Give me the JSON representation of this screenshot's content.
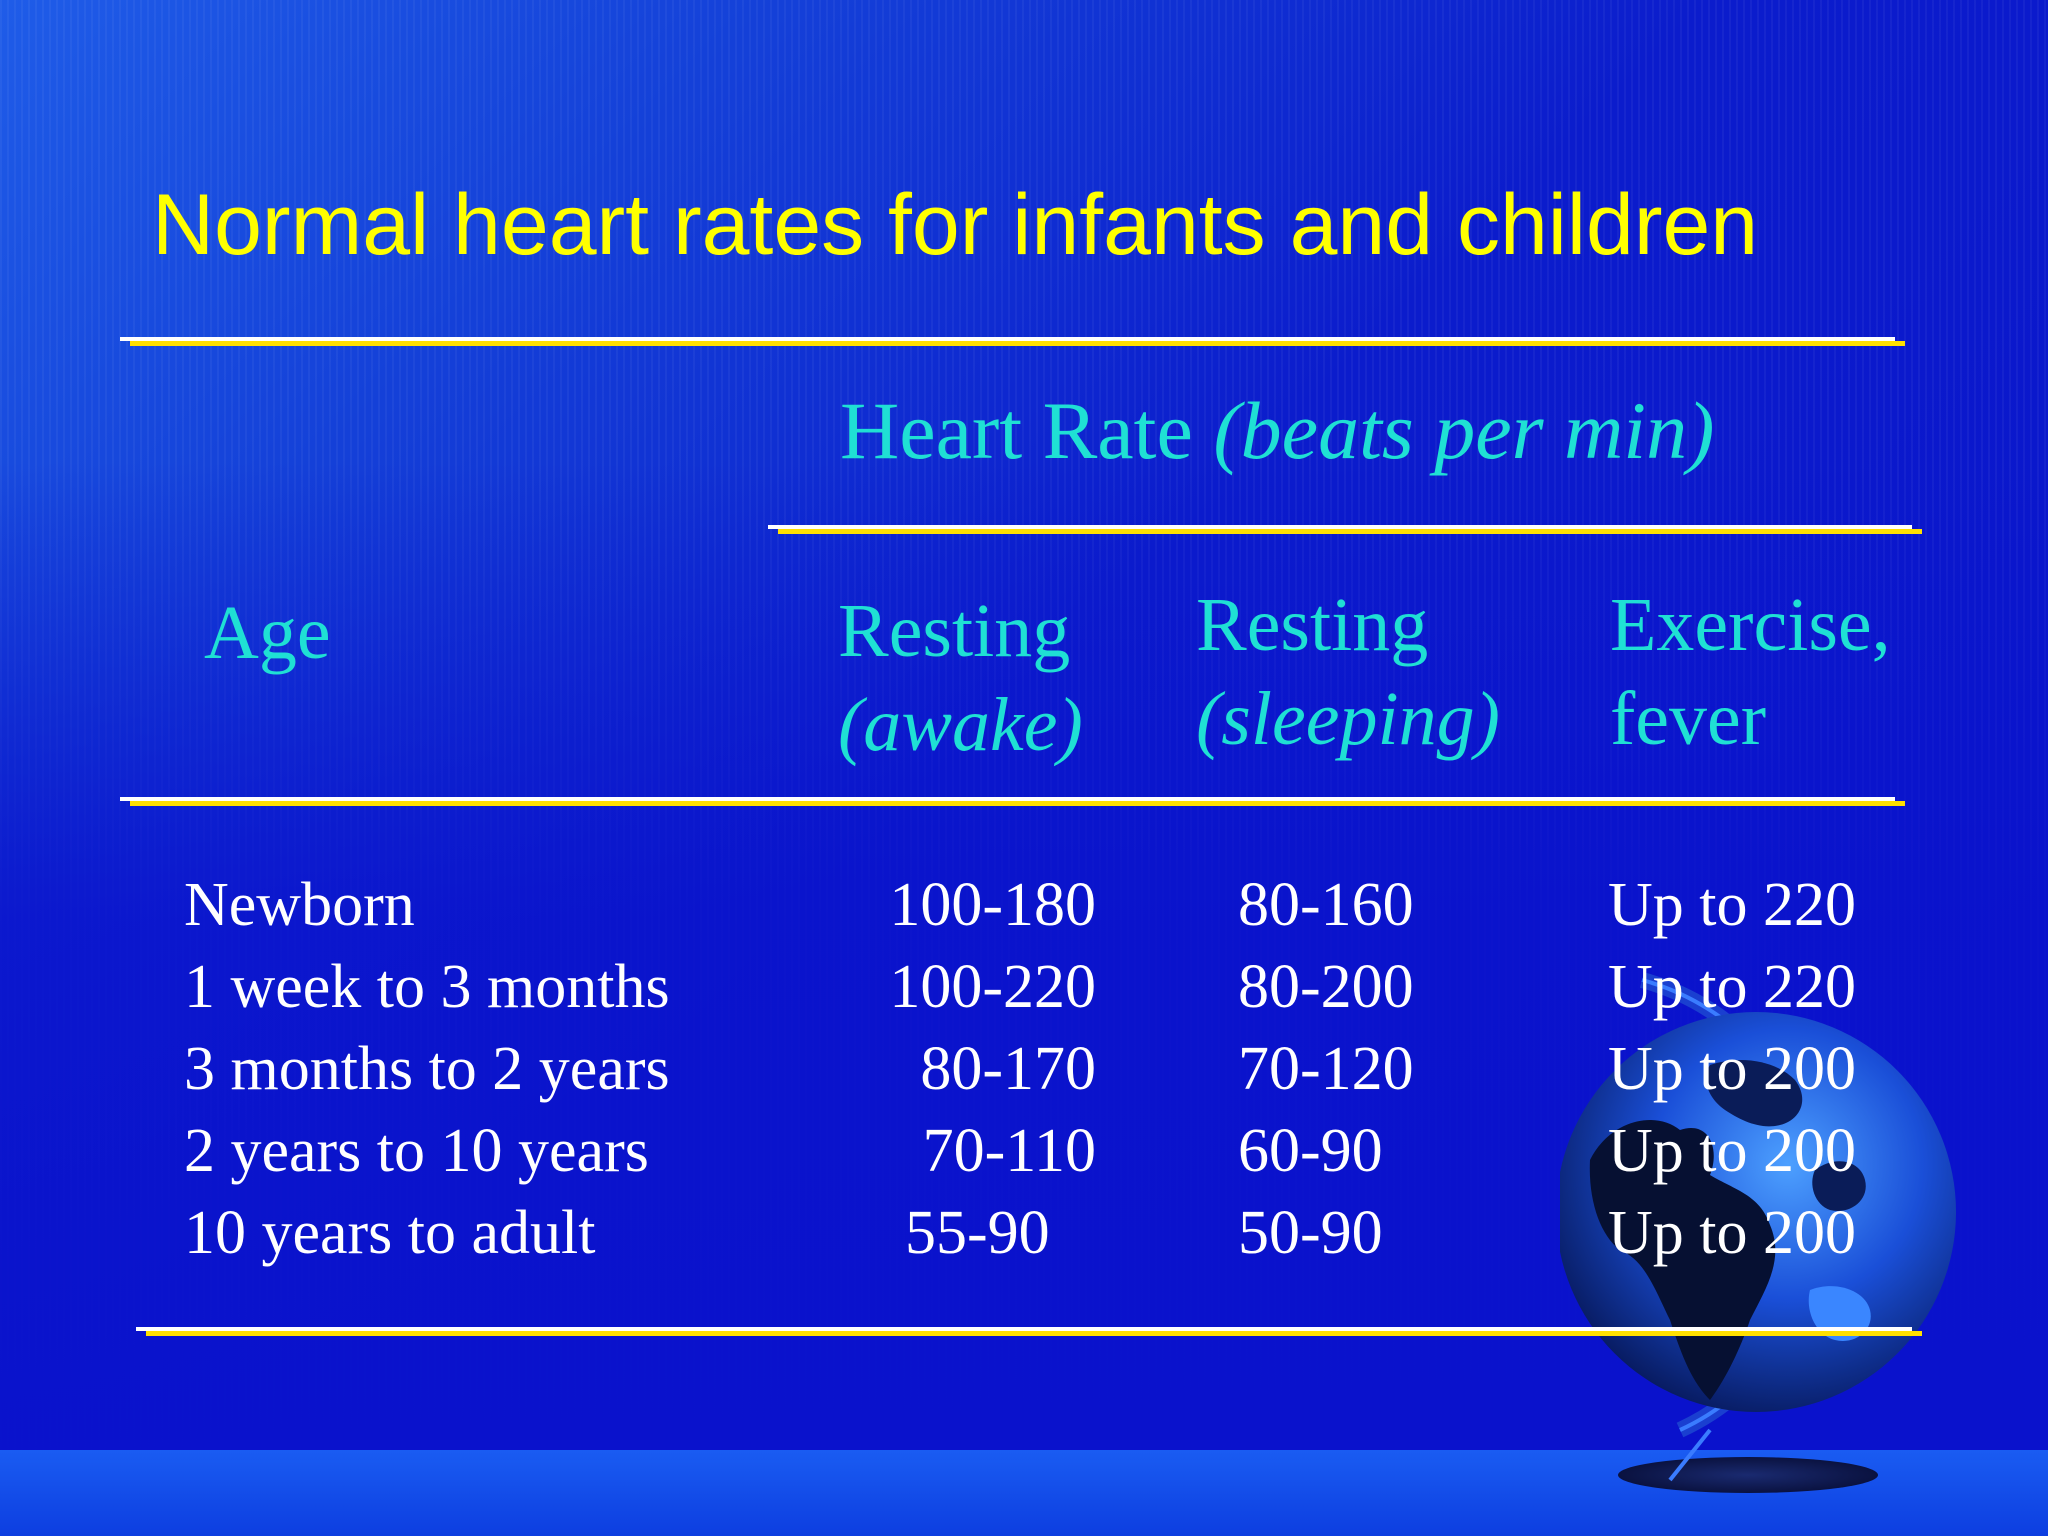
{
  "slide": {
    "title": "Normal heart rates for infants and children",
    "colors": {
      "background": "#0a12cc",
      "title": "#ffff00",
      "header": "#1fe0d4",
      "body_text": "#ffffff",
      "rule": "#ffe000"
    }
  },
  "table": {
    "group_header": {
      "main": "Heart Rate ",
      "unit": "(beats per min)"
    },
    "columns": {
      "age": {
        "line1": "Age"
      },
      "awake": {
        "line1": "Resting",
        "line2": "(awake)"
      },
      "sleeping": {
        "line1": "Resting",
        "line2": "(sleeping)"
      },
      "exercise": {
        "line1": "Exercise,",
        "line2": "fever"
      }
    },
    "rows": [
      {
        "age": "Newborn",
        "awake": "100-180",
        "sleeping": "80-160",
        "exercise": "Up to 220"
      },
      {
        "age": "1 week to 3 months",
        "awake": "100-220",
        "sleeping": "80-200",
        "exercise": "Up to 220"
      },
      {
        "age": "3 months to 2 years",
        "awake": "80-170",
        "sleeping": "70-120",
        "exercise": "Up to 200"
      },
      {
        "age": "2 years to 10 years",
        "awake": "70-110",
        "sleeping": "60-90",
        "exercise": "Up to 200"
      },
      {
        "age": "10 years to adult",
        "awake": "55-90",
        "sleeping": "50-90",
        "exercise": "Up to 200"
      }
    ]
  },
  "decoration": {
    "icon": "globe-icon"
  }
}
